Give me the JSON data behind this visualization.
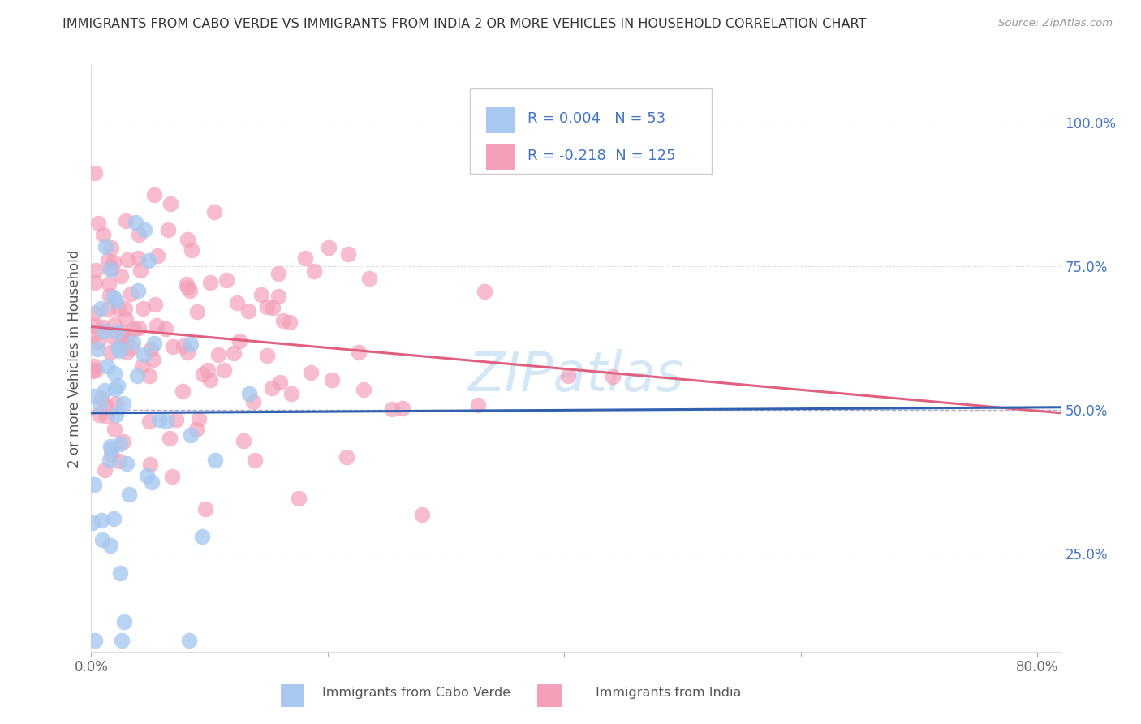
{
  "title": "IMMIGRANTS FROM CABO VERDE VS IMMIGRANTS FROM INDIA 2 OR MORE VEHICLES IN HOUSEHOLD CORRELATION CHART",
  "source": "Source: ZipAtlas.com",
  "ylabel": "2 or more Vehicles in Household",
  "xlabel_ticks": [
    "0.0%",
    "",
    "",
    "",
    "80.0%"
  ],
  "xlabel_vals": [
    0.0,
    0.2,
    0.4,
    0.6,
    0.8
  ],
  "ylabel_ticks_right": [
    "25.0%",
    "50.0%",
    "75.0%",
    "100.0%"
  ],
  "ylabel_vals_right": [
    0.25,
    0.5,
    0.75,
    1.0
  ],
  "xlim": [
    0.0,
    0.82
  ],
  "ylim": [
    0.08,
    1.1
  ],
  "cabo_verde_color": "#a8c8f0",
  "india_color": "#f4a0b8",
  "cabo_verde_line_color": "#3060b0",
  "india_line_color": "#e06080",
  "cabo_verde_R": 0.004,
  "cabo_verde_N": 53,
  "india_R": -0.218,
  "india_N": 125,
  "legend_R_color": "#4472c4",
  "watermark": "ZIPatlas",
  "watermark_color": "#b8d8f0",
  "cabo_verde_trend": [
    0.0,
    0.82,
    0.495,
    0.505
  ],
  "india_trend": [
    0.0,
    0.82,
    0.645,
    0.495
  ]
}
